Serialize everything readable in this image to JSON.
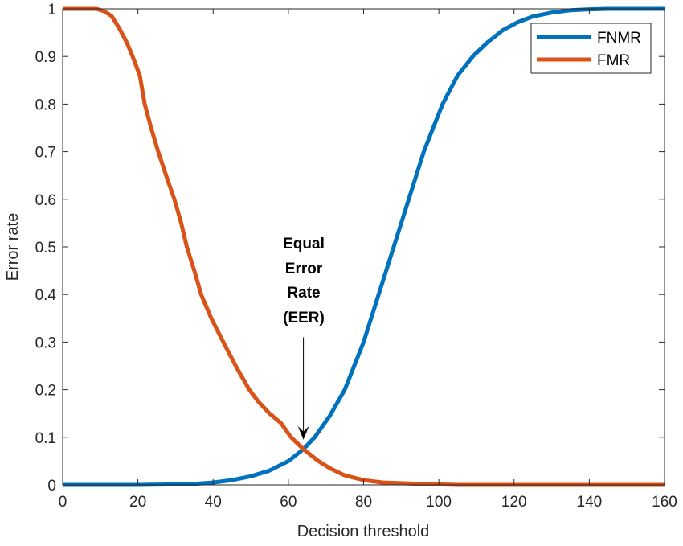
{
  "chart_data": {
    "type": "line",
    "title": "",
    "xlabel": "Decision threshold",
    "ylabel": "Error rate",
    "xlim": [
      0,
      160
    ],
    "ylim": [
      0,
      1
    ],
    "xticks": [
      0,
      20,
      40,
      60,
      80,
      100,
      120,
      140,
      160
    ],
    "xtick_labels": [
      "0",
      "20",
      "40",
      "60",
      "80",
      "100",
      "120",
      "140",
      "160"
    ],
    "yticks": [
      0,
      0.1,
      0.2,
      0.3,
      0.4,
      0.5,
      0.6,
      0.7,
      0.8,
      0.9,
      1
    ],
    "ytick_labels": [
      "0",
      "0.1",
      "0.2",
      "0.3",
      "0.4",
      "0.5",
      "0.6",
      "0.7",
      "0.8",
      "0.9",
      "1"
    ],
    "grid": false,
    "legend_position": "top-right",
    "series": [
      {
        "name": "FNMR",
        "color": "#0072BD",
        "x": [
          0,
          20,
          30,
          35,
          40,
          45,
          50,
          55,
          60,
          64,
          67,
          71,
          75,
          80,
          84,
          88,
          92,
          96,
          101,
          105,
          109,
          113,
          117,
          121,
          125,
          130,
          135,
          140,
          145,
          160
        ],
        "y": [
          0,
          0,
          0.001,
          0.002,
          0.005,
          0.01,
          0.018,
          0.03,
          0.05,
          0.075,
          0.1,
          0.145,
          0.2,
          0.3,
          0.4,
          0.5,
          0.6,
          0.7,
          0.8,
          0.86,
          0.9,
          0.93,
          0.955,
          0.972,
          0.984,
          0.992,
          0.997,
          0.999,
          1,
          1
        ]
      },
      {
        "name": "FMR",
        "color": "#D95319",
        "x": [
          0,
          9,
          11,
          13,
          15,
          17,
          18.6,
          20.5,
          21.8,
          23.5,
          25.4,
          27.5,
          29.7,
          31.5,
          33,
          35,
          36.8,
          39.5,
          42.7,
          46,
          49.6,
          52,
          55,
          58,
          60.7,
          64,
          68,
          71,
          75,
          80,
          85,
          95,
          105,
          160
        ],
        "y": [
          1,
          1,
          0.995,
          0.985,
          0.96,
          0.93,
          0.9,
          0.86,
          0.8,
          0.75,
          0.7,
          0.65,
          0.6,
          0.55,
          0.5,
          0.45,
          0.4,
          0.35,
          0.3,
          0.25,
          0.2,
          0.175,
          0.15,
          0.13,
          0.1,
          0.075,
          0.05,
          0.035,
          0.02,
          0.01,
          0.005,
          0.002,
          0,
          0
        ]
      }
    ],
    "annotation": {
      "lines": [
        "Equal",
        "Error",
        "Rate",
        "(EER)"
      ],
      "arrow_from": [
        64,
        0.31
      ],
      "arrow_to": [
        64,
        0.095
      ]
    }
  }
}
